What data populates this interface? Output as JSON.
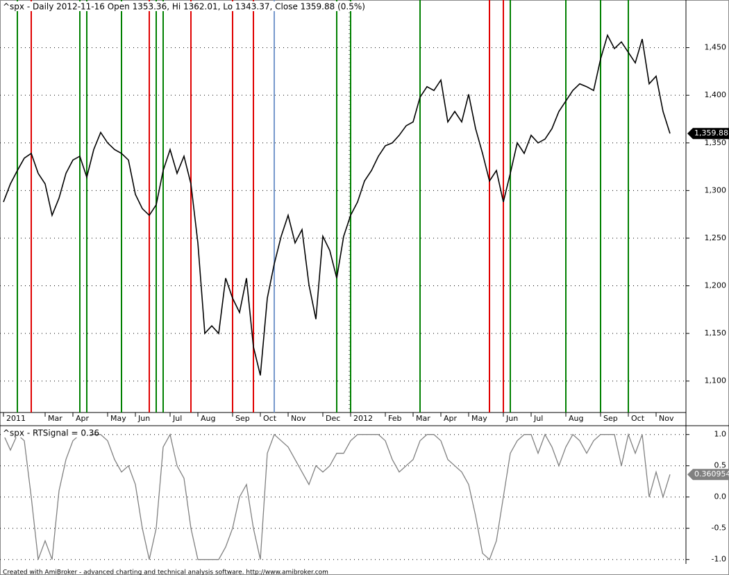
{
  "chart_data": [
    {
      "type": "line",
      "title": "^spx - Daily 2012-11-16 Open 1353.36, Hi 1362.01, Lo 1343.37, Close 1359.88 (0.5%)",
      "categories": [
        "2011",
        null,
        null,
        null,
        null,
        null,
        "Mar",
        null,
        null,
        null,
        "Apr",
        null,
        null,
        null,
        null,
        "May",
        null,
        null,
        null,
        "Jun",
        null,
        null,
        null,
        null,
        "Jul",
        null,
        null,
        null,
        "Aug",
        null,
        null,
        null,
        null,
        "Sep",
        null,
        null,
        null,
        "Oct",
        null,
        null,
        null,
        "Nov",
        null,
        null,
        null,
        null,
        "Dec",
        null,
        null,
        null,
        "2012",
        null,
        null,
        null,
        null,
        "Feb",
        null,
        null,
        null,
        "Mar",
        null,
        null,
        null,
        "Apr",
        null,
        null,
        null,
        "May",
        null,
        null,
        null,
        null,
        "Jun",
        null,
        null,
        null,
        "Jul",
        null,
        null,
        null,
        null,
        "Aug",
        null,
        null,
        null,
        null,
        "Sep",
        null,
        null,
        null,
        "Oct",
        null,
        null,
        null,
        "Nov",
        null,
        null
      ],
      "series": [
        {
          "name": "^spx",
          "color": "#000000",
          "values": [
            1288,
            1307,
            1321,
            1334,
            1339,
            1318,
            1307,
            1274,
            1292,
            1318,
            1332,
            1336,
            1314,
            1343,
            1361,
            1350,
            1343,
            1339,
            1332,
            1296,
            1281,
            1274,
            1285,
            1321,
            1343,
            1318,
            1336,
            1307,
            1245,
            1150,
            1158,
            1150,
            1208,
            1187,
            1172,
            1208,
            1136,
            1106,
            1187,
            1223,
            1252,
            1274,
            1245,
            1259,
            1201,
            1165,
            1252,
            1237,
            1208,
            1252,
            1274,
            1288,
            1310,
            1321,
            1336,
            1347,
            1350,
            1358,
            1368,
            1372,
            1398,
            1409,
            1405,
            1416,
            1372,
            1383,
            1372,
            1401,
            1365,
            1339,
            1310,
            1321,
            1288,
            1318,
            1350,
            1339,
            1358,
            1350,
            1354,
            1365,
            1383,
            1394,
            1405,
            1412,
            1409,
            1405,
            1438,
            1463,
            1449,
            1456,
            1445,
            1434,
            1459,
            1412,
            1420,
            1383,
            1359.88
          ]
        }
      ],
      "last_value_label": "1,359.88",
      "buy_signals": [
        2,
        11,
        12,
        17,
        22,
        23,
        48,
        50,
        60,
        73,
        81,
        86,
        90
      ],
      "buy_color": "#008000",
      "sell_signals": [
        4,
        21,
        27,
        33,
        36,
        70,
        72
      ],
      "sell_color": "#e00000",
      "other_signals": [
        39
      ],
      "other_color": "#7799cc",
      "ylim": [
        1067,
        1500
      ],
      "yticks": [
        {
          "value": 1100,
          "label": "1,100"
        },
        {
          "value": 1150,
          "label": "1,150"
        },
        {
          "value": 1200,
          "label": "1,200"
        },
        {
          "value": 1250,
          "label": "1,250"
        },
        {
          "value": 1300,
          "label": "1,300"
        },
        {
          "value": 1350,
          "label": "1,350"
        },
        {
          "value": 1400,
          "label": "1,400"
        },
        {
          "value": 1450,
          "label": "1,450"
        }
      ],
      "grid": true
    },
    {
      "type": "line",
      "title": "^spx - RTSignal = 0.36",
      "series": [
        {
          "name": "RTSignal",
          "color": "#808080",
          "values": [
            1.0,
            0.75,
            1.0,
            0.9,
            0.0,
            -1.0,
            -0.7,
            -1.0,
            0.1,
            0.6,
            0.9,
            1.0,
            1.0,
            1.0,
            1.0,
            0.9,
            0.6,
            0.4,
            0.5,
            0.2,
            -0.5,
            -1.0,
            -0.5,
            0.8,
            1.0,
            0.5,
            0.3,
            -0.5,
            -1.0,
            -1.0,
            -1.0,
            -1.0,
            -0.8,
            -0.5,
            0.0,
            0.2,
            -0.5,
            -1.0,
            0.7,
            1.0,
            0.9,
            0.8,
            0.6,
            0.4,
            0.2,
            0.5,
            0.4,
            0.5,
            0.7,
            0.7,
            0.9,
            1.0,
            1.0,
            1.0,
            1.0,
            0.9,
            0.6,
            0.4,
            0.5,
            0.6,
            0.9,
            1.0,
            1.0,
            0.9,
            0.6,
            0.5,
            0.4,
            0.2,
            -0.3,
            -0.9,
            -1.0,
            -0.7,
            0.0,
            0.7,
            0.9,
            1.0,
            1.0,
            0.7,
            1.0,
            0.8,
            0.5,
            0.8,
            1.0,
            0.9,
            0.7,
            0.9,
            1.0,
            1.0,
            1.0,
            0.5,
            1.0,
            0.7,
            1.0,
            0.0,
            0.4,
            0.0,
            0.360954
          ]
        }
      ],
      "last_value_label": "0.360954",
      "ylim": [
        -1.07,
        1.13
      ],
      "yticks": [
        {
          "value": -1,
          "label": "-1.0"
        },
        -0.5,
        {
          "value": 0,
          "label": "0.0"
        },
        0.5,
        {
          "value": 1,
          "label": "1.0"
        }
      ],
      "grid": true
    }
  ],
  "footer": "Created with AmiBroker - advanced charting and technical analysis software. http://www.amibroker.com"
}
